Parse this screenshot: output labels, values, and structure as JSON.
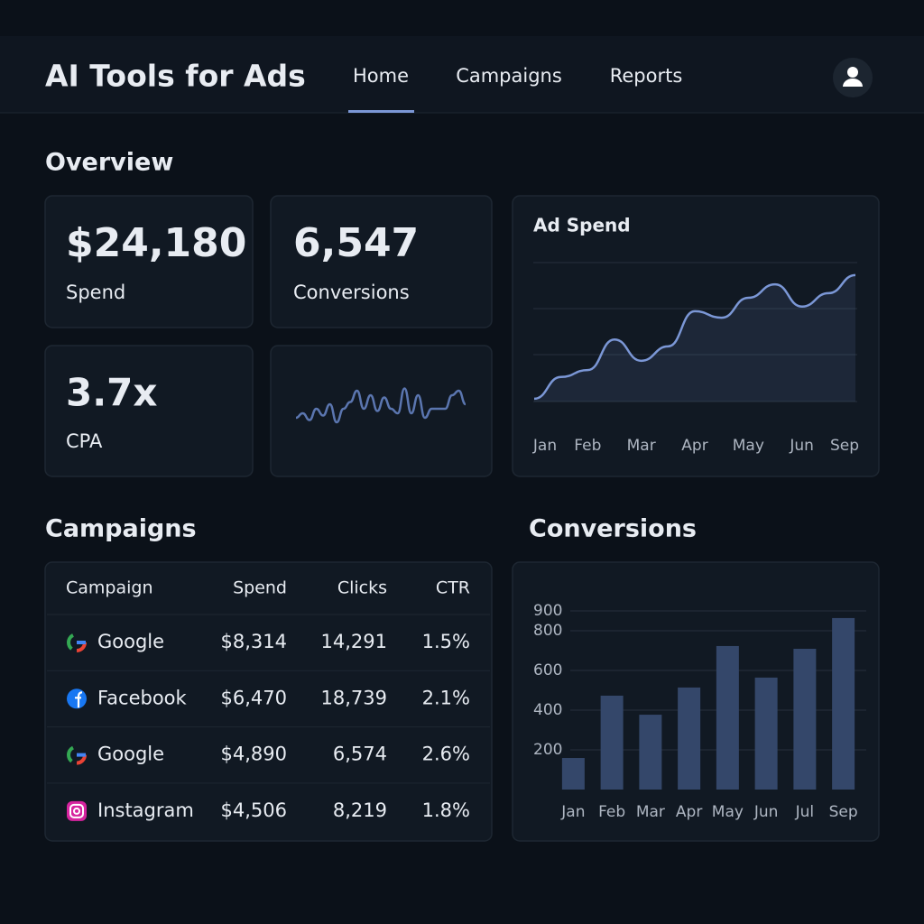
{
  "header": {
    "title": "AI Tools for Ads",
    "nav": [
      "Home",
      "Campaigns",
      "Reports"
    ]
  },
  "overview": {
    "title": "Overview",
    "cards": [
      {
        "value": "$24,180",
        "label": "Spend"
      },
      {
        "value": "6,547",
        "label": "Conversions"
      },
      {
        "value": "3.7x",
        "label": "CPA"
      }
    ],
    "sparkline": {
      "type": "line",
      "color": "#5b76b0",
      "ylim": [
        0,
        10
      ],
      "values": [
        3,
        4,
        2.5,
        5,
        3.5,
        6,
        2,
        5,
        6.5,
        9,
        5,
        8,
        4.5,
        7.5,
        5,
        4,
        9.5,
        4,
        8,
        3,
        5,
        5,
        5,
        8,
        9,
        6
      ]
    }
  },
  "ad_spend": {
    "type": "line",
    "title": "Ad Spend",
    "color": "#7b97d6",
    "ylim": [
      0,
      3
    ],
    "categories": [
      "Jan",
      null,
      "Feb",
      null,
      "Mar",
      null,
      "Apr",
      null,
      "May",
      null,
      "Jun",
      null,
      "Sep"
    ],
    "values": [
      0.06,
      0.53,
      0.68,
      1.34,
      0.88,
      1.19,
      1.95,
      1.81,
      2.24,
      2.53,
      2.05,
      2.34,
      2.73
    ]
  },
  "campaigns": {
    "title": "Campaigns",
    "columns": [
      "Campaign",
      "Spend",
      "Clicks",
      "CTR"
    ],
    "rows": [
      [
        "Google",
        "$8,314",
        "14,291",
        "1.5%"
      ],
      [
        "Facebook",
        "$6,470",
        "18,739",
        "2.1%"
      ],
      [
        "Google",
        "$4,890",
        "6,574",
        "2.6%"
      ],
      [
        "Instagram",
        "$4,506",
        "8,219",
        "1.8%"
      ]
    ]
  },
  "conversions": {
    "type": "bar",
    "title": "Conversions",
    "color": "#34476a",
    "categories": [
      "Jan",
      "Feb",
      "Mar",
      "Apr",
      "May",
      "Jun",
      "Jul",
      "Sep"
    ],
    "values": [
      159,
      473,
      377,
      514,
      723,
      564,
      709,
      864
    ],
    "ylim": [
      0,
      1000
    ],
    "yticks": [
      200,
      400,
      600,
      800,
      900
    ],
    "grid": true
  }
}
